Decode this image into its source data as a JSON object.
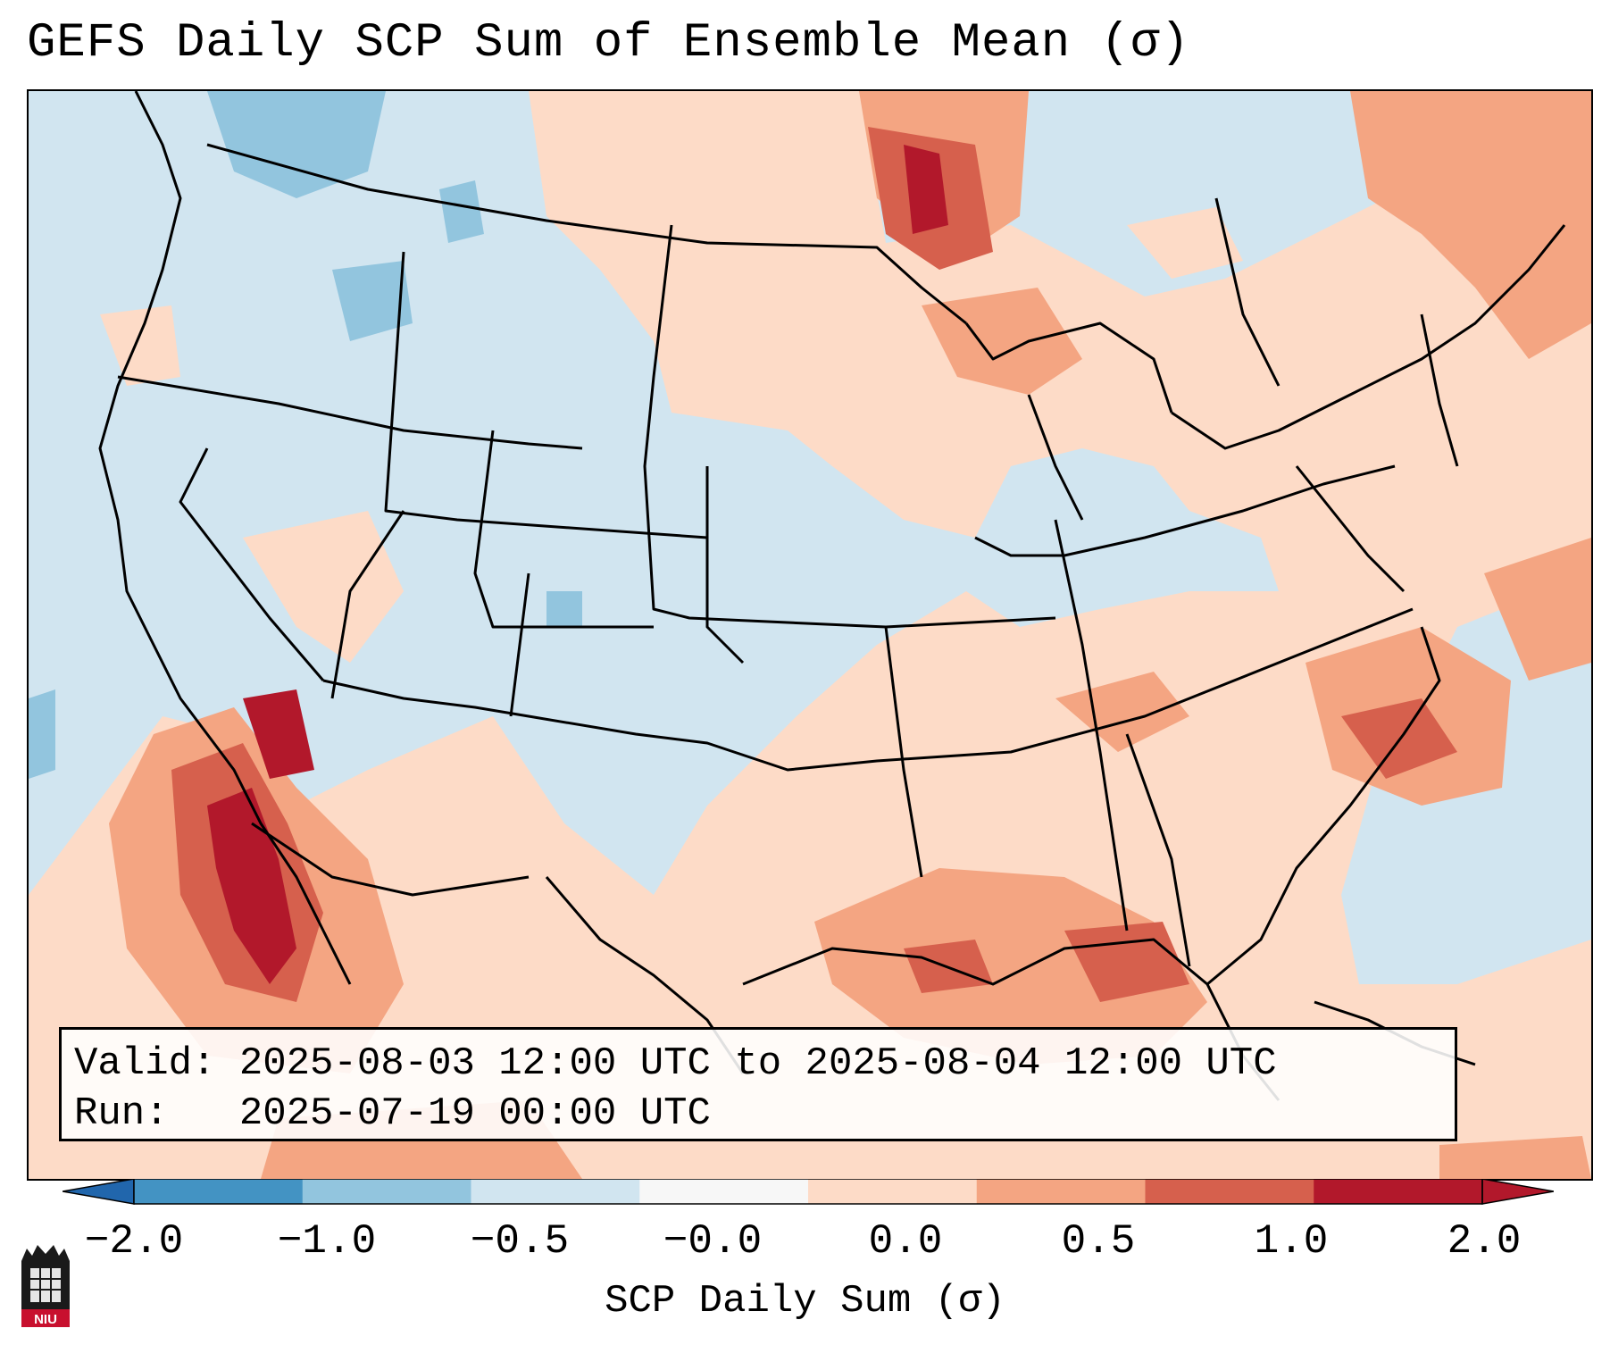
{
  "title": "GEFS Daily SCP Sum of Ensemble Mean (σ)",
  "info": {
    "valid_line": "Valid: 2025-08-03 12:00 UTC to 2025-08-04 12:00 UTC",
    "run_line": "Run:   2025-07-19 00:00 UTC"
  },
  "colorbar": {
    "label": "SCP Daily Sum (σ)",
    "ticks": [
      "−2.0",
      "−1.0",
      "−0.5",
      "−0.0",
      "0.0",
      "0.5",
      "1.0",
      "2.0"
    ],
    "colors": [
      "#4393c3",
      "#92c5de",
      "#d1e5f0",
      "#f7f7f7",
      "#fddbc7",
      "#f4a582",
      "#d6604d",
      "#b2182b"
    ],
    "extend": "both"
  },
  "legend_colors": {
    "below_min": "#2166ac",
    "above_max": "#b2182b"
  },
  "logo_text": "NIU"
}
